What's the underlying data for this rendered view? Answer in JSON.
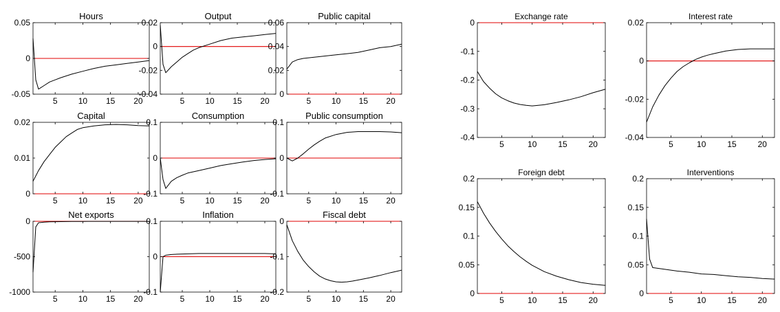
{
  "chart_data": [
    {
      "type": "line",
      "title": "Hours",
      "xlim": [
        1,
        22
      ],
      "ylim": [
        -0.05,
        0.05
      ],
      "xticks": [
        5,
        10,
        15,
        20
      ],
      "yticks": [
        -0.05,
        0,
        0.05
      ],
      "ytick_labels": [
        "-0.05",
        "0",
        "0.05"
      ],
      "xtick_labels": [
        "5",
        "10",
        "15",
        "20"
      ],
      "zero_line": 0,
      "zero_color": "#e00000",
      "series": [
        {
          "x": [
            1,
            1.5,
            2,
            3,
            4,
            5,
            6,
            8,
            10,
            12,
            14,
            16,
            18,
            20,
            22
          ],
          "y": [
            0.028,
            -0.03,
            -0.043,
            -0.038,
            -0.033,
            -0.03,
            -0.027,
            -0.022,
            -0.018,
            -0.014,
            -0.011,
            -0.009,
            -0.007,
            -0.005,
            -0.003
          ]
        }
      ]
    },
    {
      "type": "line",
      "title": "Output",
      "xlim": [
        1,
        22
      ],
      "ylim": [
        -0.04,
        0.02
      ],
      "xticks": [
        5,
        10,
        15,
        20
      ],
      "yticks": [
        -0.04,
        -0.02,
        0,
        0.02
      ],
      "ytick_labels": [
        "-0.04",
        "-0.02",
        "0",
        "0.02"
      ],
      "xtick_labels": [
        "5",
        "10",
        "15",
        "20"
      ],
      "zero_line": 0,
      "zero_color": "#e00000",
      "series": [
        {
          "x": [
            1,
            1.5,
            2,
            3,
            4,
            5,
            6,
            7,
            8,
            10,
            12,
            14,
            16,
            18,
            20,
            22
          ],
          "y": [
            0.018,
            -0.015,
            -0.022,
            -0.017,
            -0.013,
            -0.009,
            -0.006,
            -0.003,
            -0.001,
            0.002,
            0.005,
            0.007,
            0.008,
            0.009,
            0.01,
            0.011
          ]
        }
      ]
    },
    {
      "type": "line",
      "title": "Public capital",
      "xlim": [
        1,
        22
      ],
      "ylim": [
        0,
        0.06
      ],
      "xticks": [
        5,
        10,
        15,
        20
      ],
      "yticks": [
        0,
        0.02,
        0.04,
        0.06
      ],
      "ytick_labels": [
        "0",
        "0.02",
        "0.04",
        "0.06"
      ],
      "xtick_labels": [
        "5",
        "10",
        "15",
        "20"
      ],
      "zero_line": 0,
      "zero_color": "#e00000",
      "series": [
        {
          "x": [
            1,
            2,
            3,
            4,
            6,
            8,
            10,
            12,
            14,
            16,
            18,
            20,
            22
          ],
          "y": [
            0.021,
            0.027,
            0.029,
            0.03,
            0.031,
            0.032,
            0.033,
            0.034,
            0.035,
            0.037,
            0.039,
            0.04,
            0.042
          ]
        }
      ]
    },
    {
      "type": "line",
      "title": "Capital",
      "xlim": [
        1,
        22
      ],
      "ylim": [
        0,
        0.02
      ],
      "xticks": [
        5,
        10,
        15,
        20
      ],
      "yticks": [
        0,
        0.01,
        0.02
      ],
      "ytick_labels": [
        "0",
        "0.01",
        "0.02"
      ],
      "xtick_labels": [
        "5",
        "10",
        "15",
        "20"
      ],
      "zero_line": 0,
      "zero_color": "#e00000",
      "series": [
        {
          "x": [
            1,
            2,
            3,
            4,
            5,
            6,
            7,
            8,
            9,
            10,
            12,
            14,
            16,
            18,
            20,
            22
          ],
          "y": [
            0.0035,
            0.0065,
            0.009,
            0.011,
            0.013,
            0.0145,
            0.016,
            0.017,
            0.018,
            0.0185,
            0.019,
            0.0193,
            0.0194,
            0.0193,
            0.0191,
            0.019
          ]
        }
      ]
    },
    {
      "type": "line",
      "title": "Consumption",
      "xlim": [
        1,
        22
      ],
      "ylim": [
        -0.1,
        0.1
      ],
      "xticks": [
        5,
        10,
        15,
        20
      ],
      "yticks": [
        -0.1,
        0,
        0.1
      ],
      "ytick_labels": [
        "-0.1",
        "0",
        "0.1"
      ],
      "xtick_labels": [
        "5",
        "10",
        "15",
        "20"
      ],
      "zero_line": 0,
      "zero_color": "#e00000",
      "series": [
        {
          "x": [
            1,
            1.5,
            2,
            3,
            4,
            5,
            6,
            8,
            10,
            12,
            14,
            16,
            18,
            20,
            22
          ],
          "y": [
            0.0,
            -0.06,
            -0.085,
            -0.065,
            -0.055,
            -0.048,
            -0.042,
            -0.035,
            -0.028,
            -0.021,
            -0.016,
            -0.011,
            -0.007,
            -0.004,
            -0.002
          ]
        }
      ]
    },
    {
      "type": "line",
      "title": "Public consumption",
      "xlim": [
        1,
        22
      ],
      "ylim": [
        -0.1,
        0.1
      ],
      "xticks": [
        5,
        10,
        15,
        20
      ],
      "yticks": [
        -0.1,
        0,
        0.1
      ],
      "ytick_labels": [
        "-0.1",
        "0",
        "0.1"
      ],
      "xtick_labels": [
        "5",
        "10",
        "15",
        "20"
      ],
      "zero_line": 0,
      "zero_color": "#e00000",
      "series": [
        {
          "x": [
            1,
            2,
            3,
            4,
            5,
            6,
            7,
            8,
            10,
            12,
            14,
            16,
            18,
            20,
            22
          ],
          "y": [
            0.0,
            -0.008,
            0.0,
            0.012,
            0.025,
            0.037,
            0.047,
            0.056,
            0.066,
            0.072,
            0.074,
            0.074,
            0.074,
            0.073,
            0.071
          ]
        }
      ]
    },
    {
      "type": "line",
      "title": "Net exports",
      "xlim": [
        1,
        22
      ],
      "ylim": [
        -1000,
        0
      ],
      "xticks": [
        5,
        10,
        15,
        20
      ],
      "yticks": [
        -1000,
        -500,
        0
      ],
      "ytick_labels": [
        "-1000",
        "-500",
        "0"
      ],
      "xtick_labels": [
        "5",
        "10",
        "15",
        "20"
      ],
      "zero_line": 0,
      "zero_color": "#e00000",
      "series": [
        {
          "x": [
            1,
            1.5,
            2,
            3,
            4,
            6,
            8,
            10,
            15,
            20,
            22
          ],
          "y": [
            -720,
            -80,
            -20,
            -12,
            -8,
            -5,
            -3,
            -2,
            -1,
            -1,
            -1
          ]
        }
      ]
    },
    {
      "type": "line",
      "title": "Inflation",
      "xlim": [
        1,
        22
      ],
      "ylim": [
        -0.1,
        0.1
      ],
      "xticks": [
        5,
        10,
        15,
        20
      ],
      "yticks": [
        -0.1,
        0,
        0.1
      ],
      "ytick_labels": [
        "-0.1",
        "0",
        "0.1"
      ],
      "xtick_labels": [
        "5",
        "10",
        "15",
        "20"
      ],
      "zero_line": 0,
      "zero_color": "#e00000",
      "series": [
        {
          "x": [
            1,
            1.5,
            2,
            3,
            4,
            6,
            8,
            10,
            12,
            14,
            16,
            18,
            20,
            22
          ],
          "y": [
            -0.1,
            0.0,
            0.004,
            0.006,
            0.007,
            0.008,
            0.009,
            0.009,
            0.009,
            0.009,
            0.009,
            0.009,
            0.009,
            0.008
          ]
        }
      ]
    },
    {
      "type": "line",
      "title": "Fiscal debt",
      "xlim": [
        1,
        22
      ],
      "ylim": [
        -0.2,
        0
      ],
      "xticks": [
        5,
        10,
        15,
        20
      ],
      "yticks": [
        -0.2,
        -0.1,
        0
      ],
      "ytick_labels": [
        "-0.2",
        "-0.1",
        "0"
      ],
      "xtick_labels": [
        "5",
        "10",
        "15",
        "20"
      ],
      "zero_line": 0,
      "zero_color": "#e00000",
      "series": [
        {
          "x": [
            1,
            2,
            3,
            4,
            5,
            6,
            7,
            8,
            9,
            10,
            11,
            12,
            13,
            14,
            16,
            18,
            20,
            22
          ],
          "y": [
            -0.01,
            -0.055,
            -0.085,
            -0.11,
            -0.128,
            -0.143,
            -0.155,
            -0.163,
            -0.168,
            -0.171,
            -0.172,
            -0.171,
            -0.169,
            -0.166,
            -0.16,
            -0.153,
            -0.145,
            -0.138
          ]
        }
      ]
    },
    {
      "type": "line",
      "title": "Exchange rate",
      "xlim": [
        1,
        22
      ],
      "ylim": [
        -0.4,
        0
      ],
      "xticks": [
        5,
        10,
        15,
        20
      ],
      "yticks": [
        -0.4,
        -0.3,
        -0.2,
        -0.1,
        0
      ],
      "ytick_labels": [
        "-0.4",
        "-0.3",
        "-0.2",
        "-0.1",
        "0"
      ],
      "xtick_labels": [
        "5",
        "10",
        "15",
        "20"
      ],
      "zero_line": 0,
      "zero_color": "#e00000",
      "series": [
        {
          "x": [
            1,
            2,
            3,
            4,
            5,
            6,
            7,
            8,
            9,
            10,
            11,
            12,
            14,
            16,
            18,
            20,
            22
          ],
          "y": [
            -0.17,
            -0.205,
            -0.228,
            -0.248,
            -0.262,
            -0.272,
            -0.28,
            -0.285,
            -0.288,
            -0.29,
            -0.288,
            -0.286,
            -0.278,
            -0.269,
            -0.258,
            -0.244,
            -0.232
          ]
        }
      ]
    },
    {
      "type": "line",
      "title": "Interest rate",
      "xlim": [
        1,
        22
      ],
      "ylim": [
        -0.04,
        0.02
      ],
      "xticks": [
        5,
        10,
        15,
        20
      ],
      "yticks": [
        -0.04,
        -0.02,
        0,
        0.02
      ],
      "ytick_labels": [
        "-0.04",
        "-0.02",
        "0",
        "0.02"
      ],
      "xtick_labels": [
        "5",
        "10",
        "15",
        "20"
      ],
      "zero_line": 0,
      "zero_color": "#e00000",
      "series": [
        {
          "x": [
            1,
            2,
            3,
            4,
            5,
            6,
            7,
            8,
            9,
            10,
            11,
            12,
            14,
            16,
            18,
            20,
            22
          ],
          "y": [
            -0.032,
            -0.024,
            -0.018,
            -0.013,
            -0.009,
            -0.0055,
            -0.003,
            -0.001,
            0.0007,
            0.002,
            0.003,
            0.0038,
            0.0052,
            0.006,
            0.0063,
            0.0063,
            0.0063
          ]
        }
      ]
    },
    {
      "type": "line",
      "title": "Foreign debt",
      "xlim": [
        1,
        22
      ],
      "ylim": [
        0,
        0.2
      ],
      "xticks": [
        5,
        10,
        15,
        20
      ],
      "yticks": [
        0,
        0.05,
        0.1,
        0.15,
        0.2
      ],
      "ytick_labels": [
        "0",
        "0.05",
        "0.1",
        "0.15",
        "0.2"
      ],
      "xtick_labels": [
        "5",
        "10",
        "15",
        "20"
      ],
      "zero_line": 0,
      "zero_color": "#e00000",
      "series": [
        {
          "x": [
            1,
            2,
            3,
            4,
            5,
            6,
            7,
            8,
            9,
            10,
            12,
            14,
            16,
            18,
            20,
            22
          ],
          "y": [
            0.16,
            0.14,
            0.123,
            0.108,
            0.095,
            0.083,
            0.073,
            0.064,
            0.056,
            0.049,
            0.038,
            0.03,
            0.024,
            0.019,
            0.016,
            0.014
          ]
        }
      ]
    },
    {
      "type": "line",
      "title": "Interventions",
      "xlim": [
        1,
        22
      ],
      "ylim": [
        0,
        0.2
      ],
      "xticks": [
        5,
        10,
        15,
        20
      ],
      "yticks": [
        0,
        0.05,
        0.1,
        0.15,
        0.2
      ],
      "ytick_labels": [
        "0",
        "0.05",
        "0.1",
        "0.15",
        "0.2"
      ],
      "xtick_labels": [
        "5",
        "10",
        "15",
        "20"
      ],
      "zero_line": 0,
      "zero_color": "#e00000",
      "series": [
        {
          "x": [
            1,
            1.5,
            2,
            4,
            6,
            8,
            10,
            12,
            14,
            16,
            18,
            20,
            22
          ],
          "y": [
            0.13,
            0.06,
            0.045,
            0.042,
            0.039,
            0.037,
            0.034,
            0.033,
            0.031,
            0.029,
            0.028,
            0.026,
            0.025
          ]
        }
      ]
    }
  ]
}
